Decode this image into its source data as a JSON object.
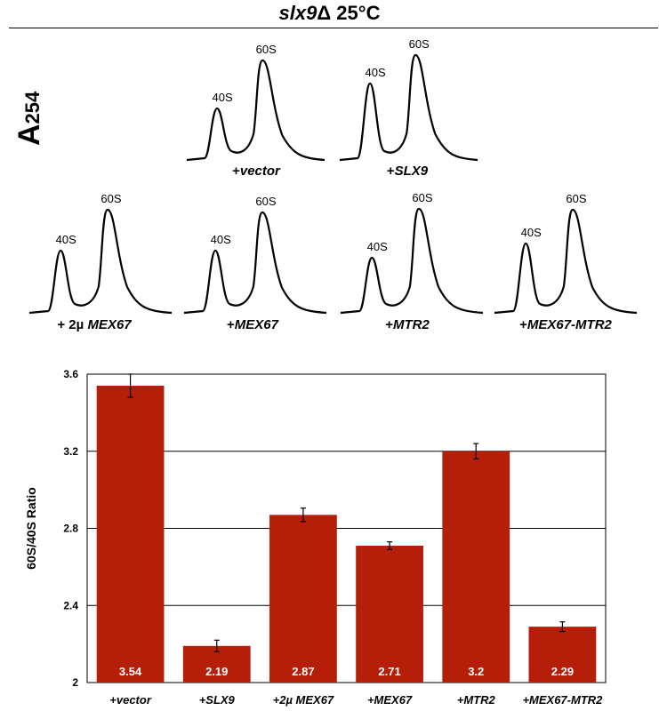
{
  "header": {
    "gene": "slx9",
    "delta": "Δ",
    "condition": "25°C"
  },
  "profile_axis_label": {
    "main": "A",
    "sub": "254"
  },
  "profiles": [
    {
      "label_prefix": "+",
      "label_italic": "vector",
      "peak_small": "40S",
      "peak_large": "60S"
    },
    {
      "label_prefix": "+",
      "label_italic": "SLX9",
      "peak_small": "40S",
      "peak_large": "60S"
    },
    {
      "label_prefix": "+ 2µ ",
      "label_italic": "MEX67",
      "peak_small": "40S",
      "peak_large": "60S"
    },
    {
      "label_prefix": "+",
      "label_italic": "MEX67",
      "peak_small": "40S",
      "peak_large": "60S"
    },
    {
      "label_prefix": "+",
      "label_italic": "MTR2",
      "peak_small": "40S",
      "peak_large": "60S"
    },
    {
      "label_prefix": "+",
      "label_italic": "MEX67-MTR2",
      "peak_small": "40S",
      "peak_large": "60S"
    }
  ],
  "colors": {
    "bar": "#b51f0a",
    "line": "#000000"
  },
  "chart_data": {
    "type": "bar",
    "categories": [
      "+vector",
      "+SLX9",
      "+2µ MEX67",
      "+MEX67",
      "+MTR2",
      "+MEX67-MTR2"
    ],
    "values": [
      3.54,
      2.19,
      2.87,
      2.71,
      3.2,
      2.29
    ],
    "value_labels": [
      "3.54",
      "2.19",
      "2.87",
      "2.71",
      "3.2",
      "2.29"
    ],
    "error": [
      0.06,
      0.03,
      0.035,
      0.02,
      0.04,
      0.025
    ],
    "ylabel": "60S/40S Ratio",
    "ylim": [
      2,
      3.6
    ],
    "yticks": [
      2,
      2.4,
      2.8,
      3.2,
      3.6
    ],
    "ytick_labels": [
      "2",
      "2.4",
      "2.8",
      "3.2",
      "3.6"
    ],
    "grid": true
  }
}
